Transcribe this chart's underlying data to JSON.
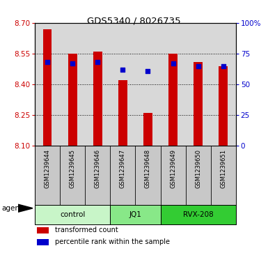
{
  "title": "GDS5340 / 8026735",
  "samples": [
    "GSM1239644",
    "GSM1239645",
    "GSM1239646",
    "GSM1239647",
    "GSM1239648",
    "GSM1239649",
    "GSM1239650",
    "GSM1239651"
  ],
  "red_values": [
    8.67,
    8.55,
    8.56,
    8.42,
    8.26,
    8.55,
    8.51,
    8.49
  ],
  "blue_pct": [
    68,
    67,
    68,
    62,
    61,
    67,
    65,
    65
  ],
  "y_min": 8.1,
  "y_max": 8.7,
  "y_ticks": [
    8.1,
    8.25,
    8.4,
    8.55,
    8.7
  ],
  "y2_ticks": [
    0,
    25,
    50,
    75,
    100
  ],
  "y2_labels": [
    "0",
    "25",
    "50",
    "75",
    "100%"
  ],
  "groups": [
    {
      "label": "control",
      "indices": [
        0,
        1,
        2
      ],
      "color": "#c8f5c8"
    },
    {
      "label": "JQ1",
      "indices": [
        3,
        4
      ],
      "color": "#88e888"
    },
    {
      "label": "RVX-208",
      "indices": [
        5,
        6,
        7
      ],
      "color": "#33cc33"
    }
  ],
  "bar_color": "#cc0000",
  "dot_color": "#0000cc",
  "bg_plot": "#d8d8d8",
  "bg_sample": "#c8c8c8",
  "legend_red": "transformed count",
  "legend_blue": "percentile rank within the sample",
  "agent_label": "agent",
  "left_tick_color": "#cc0000",
  "right_tick_color": "#0000cc",
  "bar_width": 0.35,
  "dot_size": 18
}
